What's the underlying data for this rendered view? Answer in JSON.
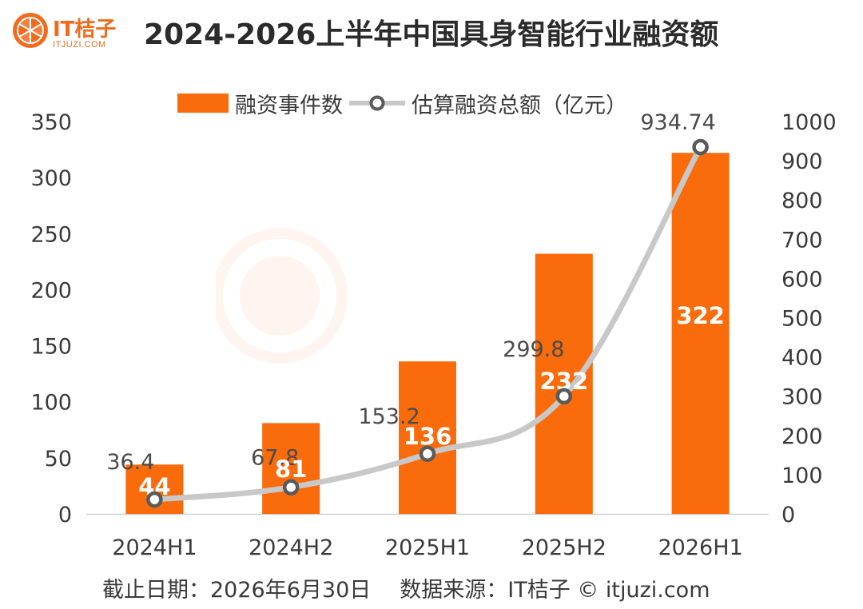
{
  "header": {
    "title": "2024-2026上半年中国具身智能行业融资额",
    "logo_text": "IT桔子",
    "logo_url": "ITJUZI.COM"
  },
  "legend": {
    "bar_label": "融资事件数",
    "line_label": "估算融资总额（亿元）"
  },
  "footer": {
    "cutoff": "截止日期：2026年6月30日",
    "source": "数据来源：IT桔子 © itjuzi.com"
  },
  "colors": {
    "bar": "#f96b0b",
    "line": "#c8c8c8",
    "marker_ring": "#5a5a5a",
    "brand": "#f26a1b"
  },
  "chart_data": {
    "type": "bar",
    "categories": [
      "2024H1",
      "2024H2",
      "2025H1",
      "2025H2",
      "2026H1"
    ],
    "series": [
      {
        "name": "融资事件数",
        "type": "bar",
        "axis": "left",
        "values": [
          44,
          81,
          136,
          232,
          322
        ],
        "labels": [
          "44",
          "81",
          "136",
          "232",
          "322"
        ]
      },
      {
        "name": "估算融资总额（亿元）",
        "type": "line",
        "axis": "right",
        "values": [
          36.4,
          67.8,
          153.2,
          299.8,
          934.74
        ],
        "labels": [
          "36.4",
          "67.8",
          "153.2",
          "299.8",
          "934.74"
        ]
      }
    ],
    "left_axis": {
      "min": 0,
      "max": 350,
      "ticks": [
        0,
        50,
        100,
        150,
        200,
        250,
        300,
        350
      ]
    },
    "right_axis": {
      "min": 0,
      "max": 1000,
      "ticks": [
        0,
        100,
        200,
        300,
        400,
        500,
        600,
        700,
        800,
        900,
        1000
      ]
    },
    "grid": false,
    "legend_position": "top"
  }
}
